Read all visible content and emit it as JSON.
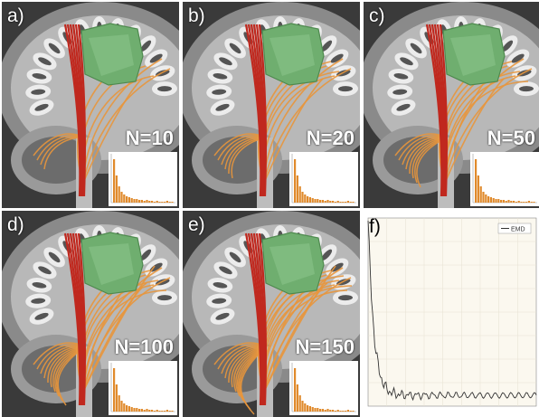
{
  "panels": [
    {
      "id": "a",
      "label": "a)",
      "n_label": "N=10"
    },
    {
      "id": "b",
      "label": "b)",
      "n_label": "N=20"
    },
    {
      "id": "c",
      "label": "c)",
      "n_label": "N=50"
    },
    {
      "id": "d",
      "label": "d)",
      "n_label": "N=100"
    },
    {
      "id": "e",
      "label": "e)",
      "n_label": "N=150"
    }
  ],
  "panel_f": {
    "label": "f)",
    "legend": "EMD"
  },
  "colors": {
    "tract_red": "#c0281e",
    "tract_orange": "#e8963c",
    "structure_green": "#6fae6f",
    "bar_orange": "#e08a2c"
  }
}
